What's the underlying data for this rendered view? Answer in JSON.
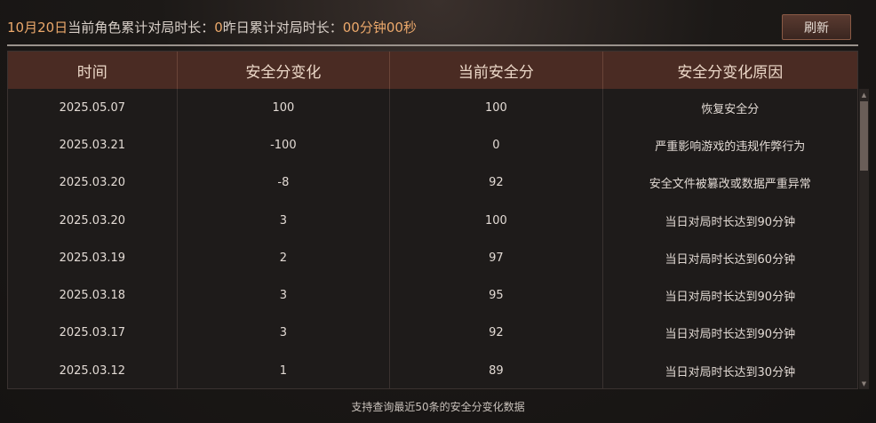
{
  "header": {
    "date": "10月20日",
    "label1": "当前角色累计对局时长：",
    "value1": "0",
    "label2": "昨日累计对局时长：",
    "value2": "00分钟00秒",
    "refresh_label": "刷新"
  },
  "table": {
    "columns": [
      "时间",
      "安全分变化",
      "当前安全分",
      "安全分变化原因"
    ],
    "rows": [
      [
        "2025.05.07",
        "100",
        "100",
        "恢复安全分"
      ],
      [
        "2025.03.21",
        "-100",
        "0",
        "严重影响游戏的违规作弊行为"
      ],
      [
        "2025.03.20",
        "-8",
        "92",
        "安全文件被篡改或数据严重异常"
      ],
      [
        "2025.03.20",
        "3",
        "100",
        "当日对局时长达到90分钟"
      ],
      [
        "2025.03.19",
        "2",
        "97",
        "当日对局时长达到60分钟"
      ],
      [
        "2025.03.18",
        "3",
        "95",
        "当日对局时长达到90分钟"
      ],
      [
        "2025.03.17",
        "3",
        "92",
        "当日对局时长达到90分钟"
      ],
      [
        "2025.03.12",
        "1",
        "89",
        "当日对局时长达到30分钟"
      ]
    ]
  },
  "footer": "支持查询最近50条的安全分变化数据",
  "colors": {
    "accent": "#eba86b",
    "header_bg": "#4a2b23"
  }
}
